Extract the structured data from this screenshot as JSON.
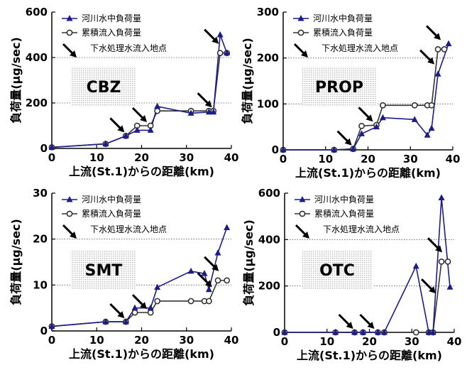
{
  "legend": {
    "river": "河川水中負荷量",
    "cumulative": "累積流入負荷量",
    "inflow": "下水処理水流入地点"
  },
  "xlabel": "上流(St.1)からの距離(km)",
  "ylabel": "負荷量(μg/sec)",
  "colors": {
    "river": "#1c1c8a",
    "cumulative": "#333333"
  },
  "chart_data": [
    {
      "type": "line",
      "title": "CBZ",
      "xlim": [
        0,
        40
      ],
      "ylim": [
        0,
        600
      ],
      "xticks": [
        0,
        10,
        20,
        30,
        40
      ],
      "yticks": [
        0,
        200,
        400,
        600
      ],
      "dotted_y": [
        200,
        400
      ],
      "series": [
        {
          "name": "河川水中負荷量",
          "x": [
            0,
            12,
            16.5,
            19,
            22,
            23.5,
            31,
            35,
            36,
            37.5,
            39
          ],
          "y": [
            5,
            20,
            55,
            80,
            80,
            185,
            155,
            160,
            160,
            500,
            420
          ]
        },
        {
          "name": "累積流入負荷量",
          "x": [
            0,
            12,
            16.5,
            19,
            22,
            23.5,
            31,
            35,
            36,
            37.5,
            39
          ],
          "y": [
            5,
            20,
            55,
            100,
            100,
            165,
            165,
            165,
            165,
            420,
            420
          ]
        }
      ],
      "arrows_at_x": [
        16.5,
        21.5,
        36,
        37.5
      ]
    },
    {
      "type": "line",
      "title": "PROP",
      "xlim": [
        0,
        40
      ],
      "ylim": [
        0,
        300
      ],
      "xticks": [
        0,
        10,
        20,
        30,
        40
      ],
      "yticks": [
        0,
        100,
        200,
        300
      ],
      "dotted_y": [
        100,
        200
      ],
      "series": [
        {
          "name": "河川水中負荷量",
          "x": [
            0,
            12,
            16.5,
            18.5,
            22,
            23.5,
            31,
            34,
            35,
            36.5,
            39
          ],
          "y": [
            0,
            0,
            2,
            35,
            50,
            70,
            66,
            32,
            47,
            165,
            231
          ]
        },
        {
          "name": "累積流入負荷量",
          "x": [
            0,
            12,
            16.5,
            18.5,
            22,
            23.5,
            31,
            34,
            35,
            36.5,
            38
          ],
          "y": [
            0,
            0,
            2,
            52,
            54,
            97,
            97,
            97,
            97,
            219,
            219
          ]
        }
      ],
      "arrows_at_x": [
        16.5,
        21.5,
        36,
        37.5
      ]
    },
    {
      "type": "line",
      "title": "SMT",
      "xlim": [
        0,
        40
      ],
      "ylim": [
        0,
        30
      ],
      "xticks": [
        0,
        10,
        20,
        30,
        40
      ],
      "yticks": [
        0,
        10,
        20,
        30
      ],
      "dotted_y": [
        10,
        20
      ],
      "series": [
        {
          "name": "河川水中負荷量",
          "x": [
            0,
            12,
            16.5,
            18.5,
            22,
            23.5,
            31,
            34,
            35,
            37,
            39
          ],
          "y": [
            1,
            2,
            2,
            5,
            5,
            9.5,
            13,
            12.5,
            9,
            17,
            22.5
          ]
        },
        {
          "name": "累積流入負荷量",
          "x": [
            0,
            12,
            16.5,
            18.5,
            22,
            23.5,
            31,
            34,
            35,
            37,
            39
          ],
          "y": [
            1,
            2,
            2,
            4,
            4,
            6.5,
            6.5,
            6.5,
            6.5,
            11,
            11
          ]
        }
      ],
      "arrows_at_x": [
        16.5,
        21.5,
        36,
        37.5
      ]
    },
    {
      "type": "line",
      "title": "OTC",
      "xlim": [
        0,
        40
      ],
      "ylim": [
        0,
        600
      ],
      "xticks": [
        0,
        10,
        20,
        30,
        40
      ],
      "yticks": [
        0,
        200,
        400,
        600
      ],
      "dotted_y": [
        200,
        400
      ],
      "series": [
        {
          "name": "河川水中負荷量",
          "x": [
            0,
            12,
            16.5,
            18.5,
            22,
            23.5,
            31,
            34,
            35,
            37,
            39
          ],
          "y": [
            0,
            0,
            0,
            0,
            0,
            0,
            285,
            0,
            0,
            580,
            195
          ]
        },
        {
          "name": "累積流入負荷量",
          "x": [
            0,
            12,
            16.5,
            18.5,
            22,
            23.5,
            31,
            34,
            35,
            37,
            38.5
          ],
          "y": [
            0,
            0,
            0,
            0,
            0,
            0,
            0,
            0,
            0,
            305,
            305
          ]
        }
      ],
      "arrows_at_x": [
        16.5,
        21.5,
        36,
        37.5
      ]
    }
  ]
}
